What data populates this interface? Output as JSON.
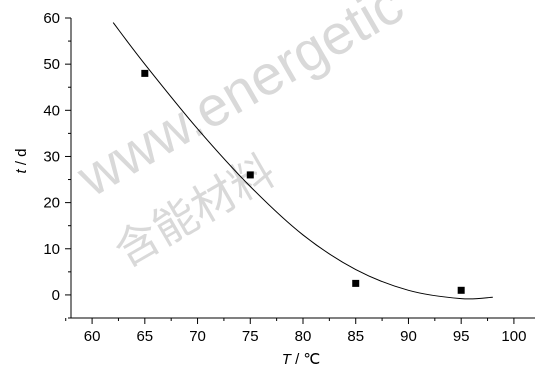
{
  "chart_data": {
    "type": "scatter",
    "xlabel_var": "T",
    "xlabel_unit": " / ℃",
    "ylabel_var": "t",
    "ylabel_unit": " / d",
    "xlim": [
      58,
      102
    ],
    "ylim": [
      -5,
      60
    ],
    "xticks": [
      60,
      65,
      70,
      75,
      80,
      85,
      90,
      95,
      100
    ],
    "yticks": [
      0,
      10,
      20,
      30,
      40,
      50,
      60
    ],
    "grid": false,
    "series": [
      {
        "kind": "points",
        "x": [
          65,
          75,
          85,
          95
        ],
        "y": [
          48,
          26,
          2.5,
          1
        ]
      },
      {
        "kind": "fit-line",
        "x": [
          62,
          65,
          70,
          75,
          80,
          85,
          90,
          95,
          98
        ],
        "y": [
          59,
          50,
          36,
          23.5,
          13,
          5.5,
          1,
          -0.8,
          -0.5
        ]
      }
    ]
  },
  "watermark": {
    "text_en": "www.energetic",
    "text_cn": "含能材料",
    "color": "#d9d9d9"
  }
}
